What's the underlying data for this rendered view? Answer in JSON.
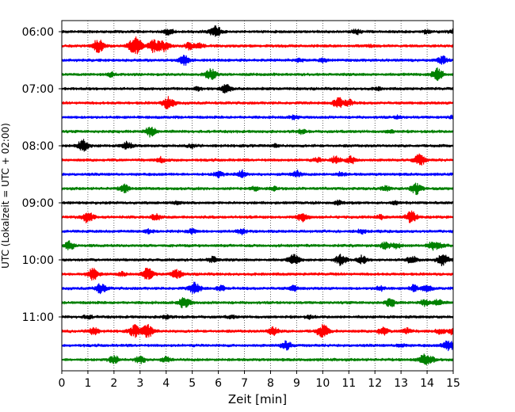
{
  "chart_data": {
    "type": "line",
    "chart_kind": "helicorder",
    "xlabel": "Zeit  [min]",
    "ylabel": "UTC (Lokalzeit = UTC + 02:00)",
    "xlim": [
      0,
      15
    ],
    "xticks": [
      0,
      1,
      2,
      3,
      4,
      5,
      6,
      7,
      8,
      9,
      10,
      11,
      12,
      13,
      14,
      15
    ],
    "x_grid": "dotted vertical gridlines at each minute",
    "yticks": [
      "06:00",
      "07:00",
      "08:00",
      "09:00",
      "10:00",
      "11:00"
    ],
    "trace_interval_min": 15,
    "trace_colors": [
      "#000000",
      "#ff0000",
      "#0000ff",
      "#008000"
    ],
    "traces": [
      {
        "start": "06:00",
        "events": [
          [
            4.1,
            0.5
          ],
          [
            5.9,
            0.9
          ],
          [
            11.3,
            0.4
          ],
          [
            14.0,
            0.3
          ],
          [
            15.0,
            0.3
          ]
        ]
      },
      {
        "start": "06:15",
        "events": [
          [
            1.4,
            1.0
          ],
          [
            2.7,
            0.7
          ],
          [
            2.9,
            1.0
          ],
          [
            3.5,
            1.0
          ],
          [
            3.9,
            0.8
          ],
          [
            4.9,
            0.5
          ],
          [
            5.3,
            0.4
          ],
          [
            11.8,
            0.2
          ]
        ]
      },
      {
        "start": "06:30",
        "events": [
          [
            4.7,
            0.8
          ],
          [
            9.1,
            0.3
          ],
          [
            10.0,
            0.3
          ],
          [
            14.6,
            0.6
          ]
        ]
      },
      {
        "start": "06:45",
        "events": [
          [
            1.9,
            0.3
          ],
          [
            5.7,
            0.9
          ],
          [
            14.4,
            1.0
          ]
        ]
      },
      {
        "start": "07:00",
        "events": [
          [
            6.3,
            0.7
          ],
          [
            5.2,
            0.3
          ],
          [
            12.1,
            0.2
          ]
        ]
      },
      {
        "start": "07:15",
        "events": [
          [
            4.1,
            1.0
          ],
          [
            10.6,
            0.8
          ],
          [
            11.0,
            0.5
          ]
        ]
      },
      {
        "start": "07:30",
        "events": [
          [
            8.9,
            0.3
          ],
          [
            12.9,
            0.2
          ],
          [
            15.0,
            0.3
          ]
        ]
      },
      {
        "start": "07:45",
        "events": [
          [
            3.4,
            0.8
          ],
          [
            9.2,
            0.3
          ],
          [
            12.6,
            0.2
          ]
        ]
      },
      {
        "start": "08:00",
        "events": [
          [
            0.8,
            0.9
          ],
          [
            2.5,
            0.6
          ],
          [
            5.0,
            0.3
          ],
          [
            8.2,
            0.2
          ]
        ]
      },
      {
        "start": "08:15",
        "events": [
          [
            3.8,
            0.4
          ],
          [
            10.5,
            0.6
          ],
          [
            11.1,
            0.6
          ],
          [
            13.7,
            0.9
          ],
          [
            9.8,
            0.3
          ]
        ]
      },
      {
        "start": "08:30",
        "events": [
          [
            6.0,
            0.5
          ],
          [
            6.9,
            0.6
          ],
          [
            9.0,
            0.5
          ],
          [
            10.7,
            0.3
          ]
        ]
      },
      {
        "start": "08:45",
        "events": [
          [
            2.4,
            0.6
          ],
          [
            7.4,
            0.3
          ],
          [
            8.1,
            0.3
          ],
          [
            12.4,
            0.4
          ],
          [
            13.6,
            0.9
          ]
        ]
      },
      {
        "start": "09:00",
        "events": [
          [
            4.4,
            0.2
          ],
          [
            10.6,
            0.3
          ],
          [
            12.8,
            0.2
          ]
        ]
      },
      {
        "start": "09:15",
        "events": [
          [
            1.0,
            0.9
          ],
          [
            3.6,
            0.5
          ],
          [
            9.2,
            0.7
          ],
          [
            13.4,
            0.9
          ],
          [
            12.2,
            0.3
          ]
        ]
      },
      {
        "start": "09:30",
        "events": [
          [
            3.3,
            0.3
          ],
          [
            5.0,
            0.4
          ],
          [
            6.9,
            0.4
          ],
          [
            11.5,
            0.3
          ]
        ]
      },
      {
        "start": "09:45",
        "events": [
          [
            0.3,
            0.7
          ],
          [
            12.4,
            0.5
          ],
          [
            12.8,
            0.5
          ],
          [
            14.2,
            0.6
          ],
          [
            14.5,
            0.4
          ]
        ]
      },
      {
        "start": "10:00",
        "events": [
          [
            5.8,
            0.5
          ],
          [
            8.9,
            0.8
          ],
          [
            10.7,
            0.9
          ],
          [
            11.5,
            0.6
          ],
          [
            14.6,
            0.9
          ],
          [
            13.4,
            0.6
          ]
        ]
      },
      {
        "start": "10:15",
        "events": [
          [
            1.2,
            0.9
          ],
          [
            3.3,
            0.9
          ],
          [
            4.4,
            0.7
          ],
          [
            2.3,
            0.3
          ]
        ]
      },
      {
        "start": "10:30",
        "events": [
          [
            1.5,
            0.8
          ],
          [
            5.1,
            0.9
          ],
          [
            6.1,
            0.4
          ],
          [
            8.9,
            0.4
          ],
          [
            12.2,
            0.4
          ],
          [
            13.5,
            0.5
          ],
          [
            14.0,
            0.5
          ]
        ]
      },
      {
        "start": "10:45",
        "events": [
          [
            4.7,
            0.9
          ],
          [
            12.6,
            0.6
          ],
          [
            13.9,
            0.5
          ],
          [
            14.4,
            0.5
          ]
        ]
      },
      {
        "start": "11:00",
        "events": [
          [
            1.0,
            0.3
          ],
          [
            4.0,
            0.3
          ],
          [
            6.5,
            0.2
          ],
          [
            9.5,
            0.2
          ]
        ]
      },
      {
        "start": "11:15",
        "events": [
          [
            1.2,
            0.6
          ],
          [
            2.8,
            0.9
          ],
          [
            3.3,
            1.0
          ],
          [
            8.1,
            0.7
          ],
          [
            10.0,
            1.0
          ],
          [
            12.3,
            0.6
          ],
          [
            13.2,
            0.5
          ],
          [
            14.5,
            0.4
          ],
          [
            15.0,
            0.5
          ]
        ]
      },
      {
        "start": "11:30",
        "events": [
          [
            8.6,
            0.7
          ],
          [
            13.0,
            0.3
          ],
          [
            14.9,
            0.6
          ],
          [
            14.7,
            0.4
          ]
        ]
      },
      {
        "start": "11:45",
        "events": [
          [
            2.0,
            0.6
          ],
          [
            3.0,
            0.6
          ],
          [
            4.0,
            0.4
          ],
          [
            13.9,
            0.8
          ],
          [
            14.2,
            0.3
          ]
        ]
      }
    ]
  }
}
